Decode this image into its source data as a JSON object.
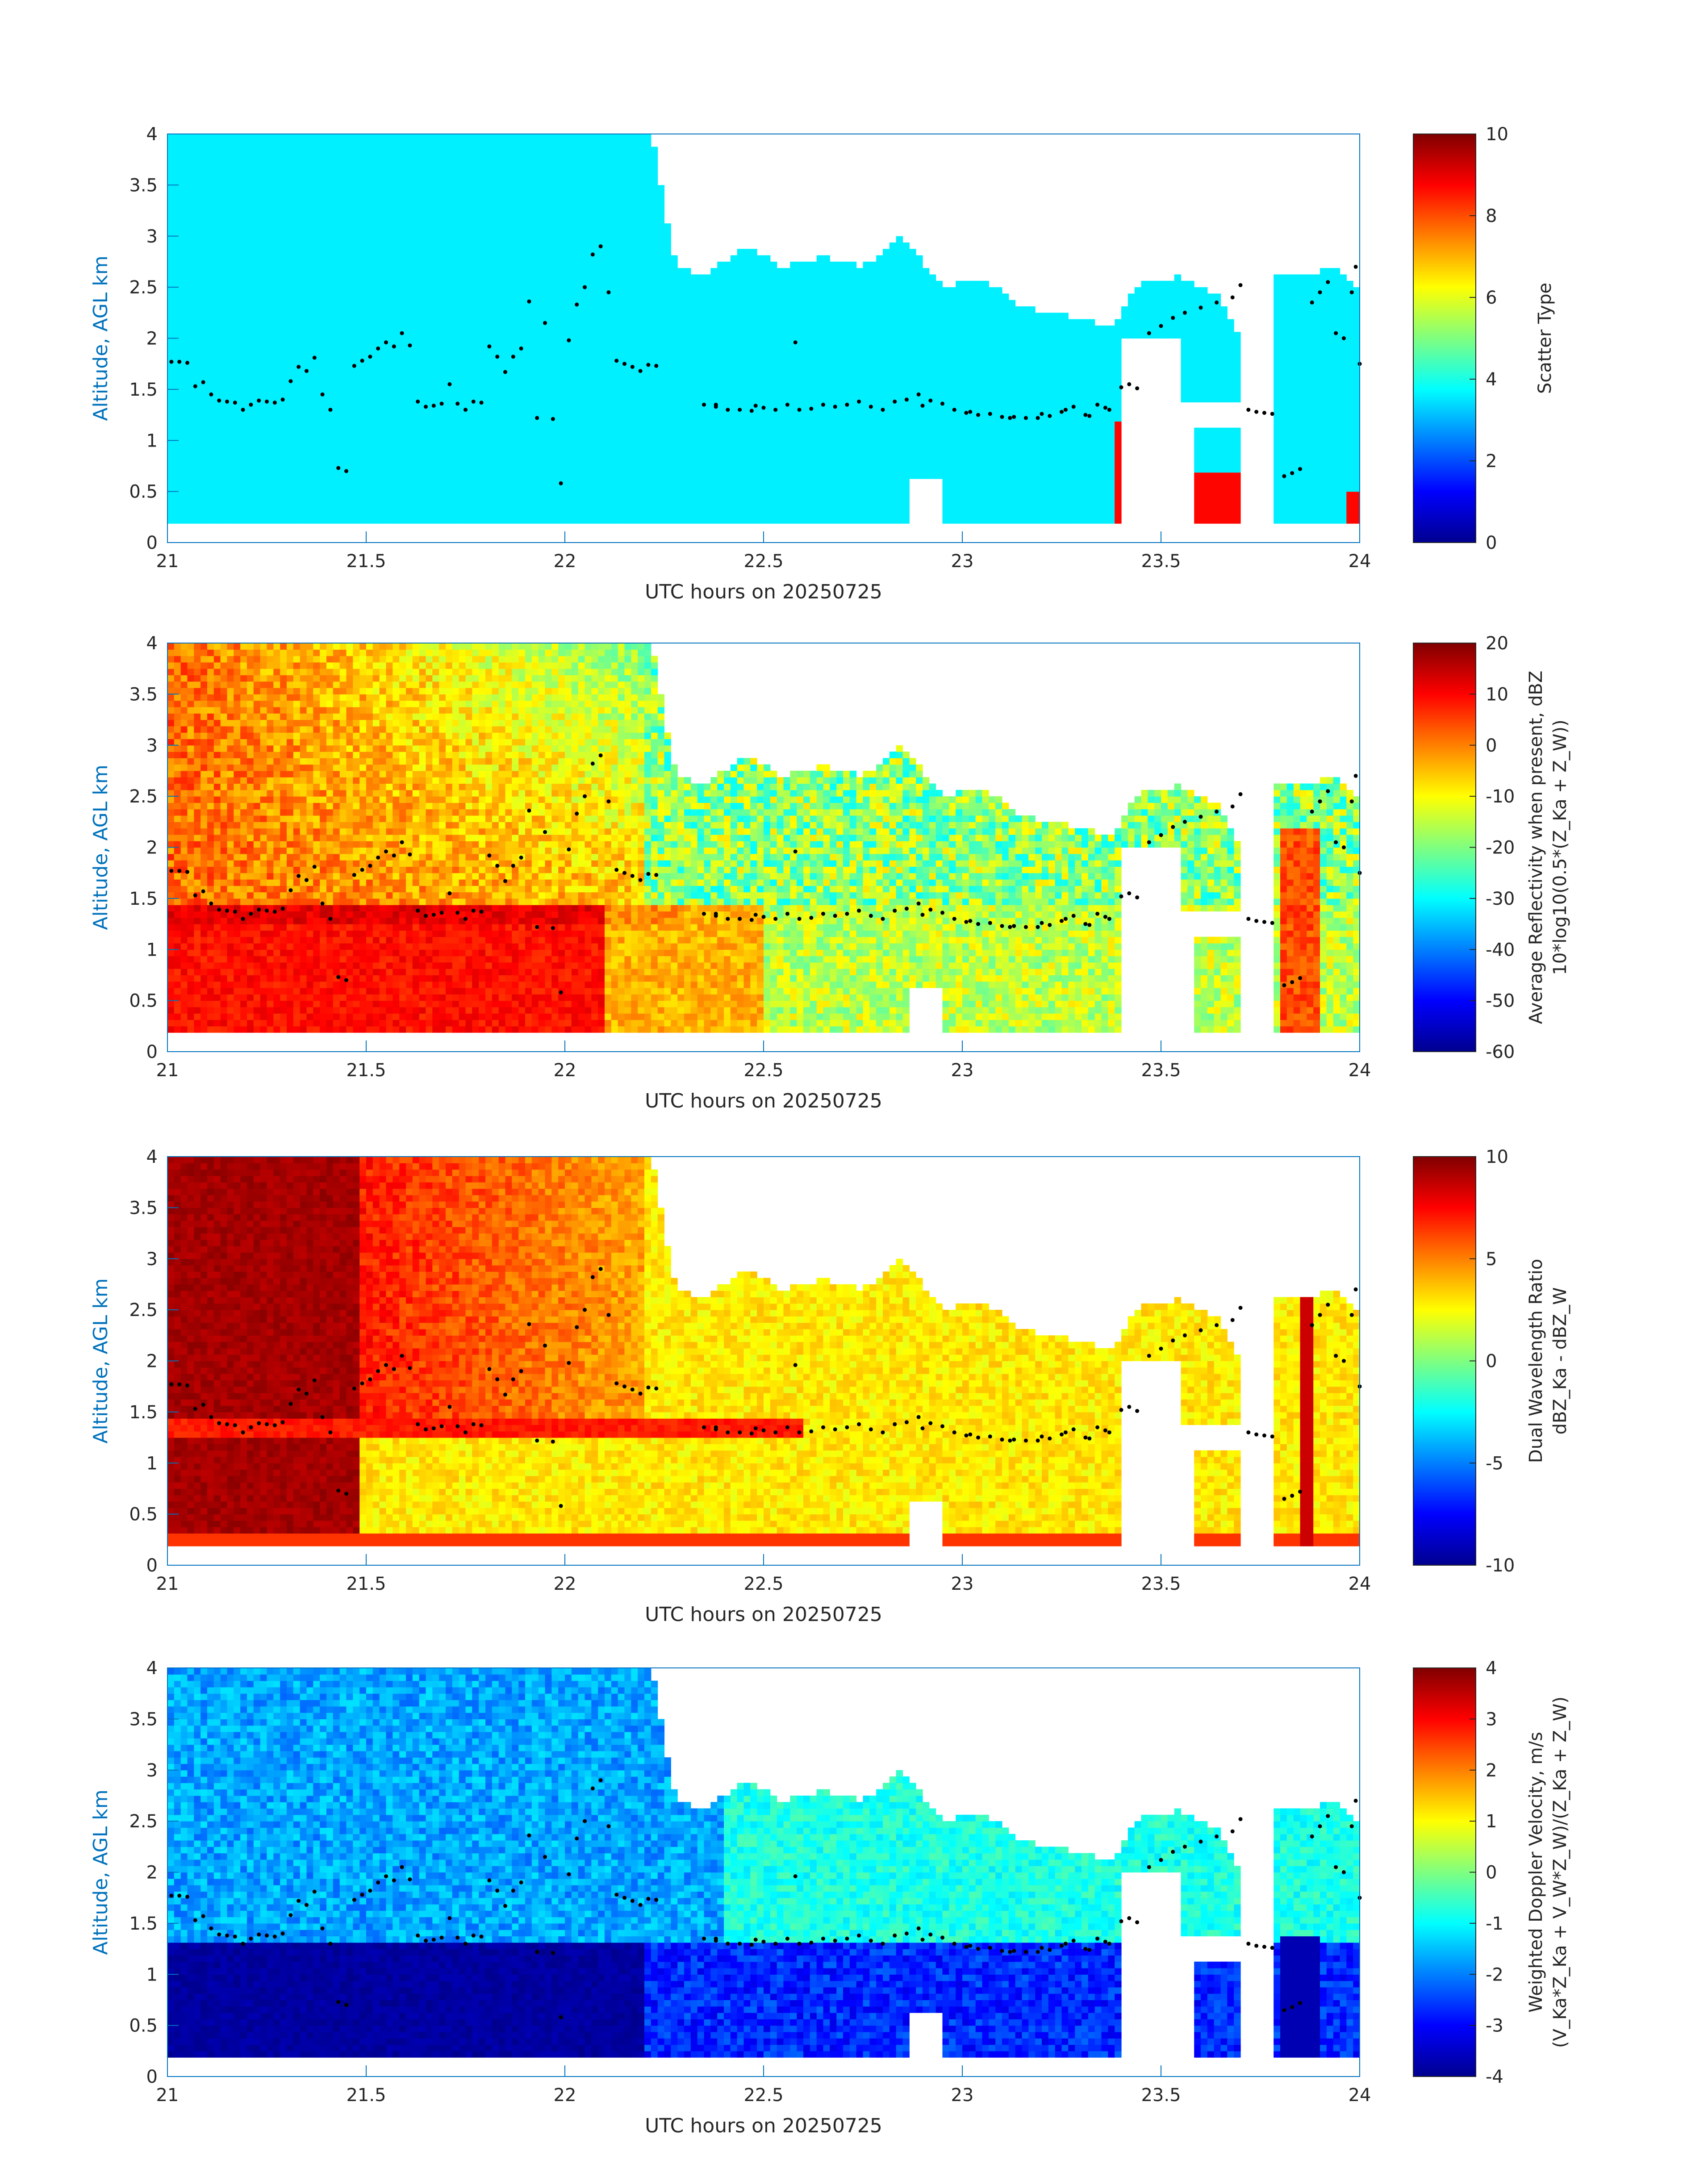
{
  "figure": {
    "background": "#ffffff",
    "axis_color": "#0072bd",
    "text_color": "#262626"
  },
  "chart_data": [
    {
      "type": "heatmap",
      "title": "",
      "xlabel": "UTC hours on 20250725",
      "ylabel": "Altitude, AGL km",
      "xlim": [
        21,
        24
      ],
      "ylim": [
        0,
        4
      ],
      "xticks": [
        "21",
        "21.5",
        "22",
        "22.5",
        "23",
        "23.5",
        "24"
      ],
      "yticks": [
        "0",
        "0.5",
        "1",
        "1.5",
        "2",
        "2.5",
        "3",
        "3.5",
        "4"
      ],
      "colormap": "jet",
      "colorbar": {
        "label": "Scatter Type",
        "clim": [
          0,
          10
        ],
        "ticks": [
          "0",
          "2",
          "4",
          "6",
          "8",
          "10"
        ]
      },
      "field": "scatter_type"
    },
    {
      "type": "heatmap",
      "title": "",
      "xlabel": "UTC hours on 20250725",
      "ylabel": "Altitude, AGL km",
      "xlim": [
        21,
        24
      ],
      "ylim": [
        0,
        4
      ],
      "xticks": [
        "21",
        "21.5",
        "22",
        "22.5",
        "23",
        "23.5",
        "24"
      ],
      "yticks": [
        "0",
        "0.5",
        "1",
        "1.5",
        "2",
        "2.5",
        "3",
        "3.5",
        "4"
      ],
      "colormap": "jet",
      "colorbar": {
        "label": "Average Reflectivity when present, dBZ",
        "label2": "10*log10(0.5*(Z_Ka + Z_W))",
        "clim": [
          -60,
          20
        ],
        "ticks": [
          "-60",
          "-50",
          "-40",
          "-30",
          "-20",
          "-10",
          "0",
          "10",
          "20"
        ]
      },
      "field": "reflectivity"
    },
    {
      "type": "heatmap",
      "title": "",
      "xlabel": "UTC hours on 20250725",
      "ylabel": "Altitude, AGL km",
      "xlim": [
        21,
        24
      ],
      "ylim": [
        0,
        4
      ],
      "xticks": [
        "21",
        "21.5",
        "22",
        "22.5",
        "23",
        "23.5",
        "24"
      ],
      "yticks": [
        "0",
        "0.5",
        "1",
        "1.5",
        "2",
        "2.5",
        "3",
        "3.5",
        "4"
      ],
      "colormap": "jet",
      "colorbar": {
        "label": "Dual Wavelength Ratio",
        "label2": "dBZ_Ka - dBZ_W",
        "clim": [
          -10,
          10
        ],
        "ticks": [
          "-10",
          "-5",
          "0",
          "5",
          "10"
        ]
      },
      "field": "dwr"
    },
    {
      "type": "heatmap",
      "title": "",
      "xlabel": "UTC hours on 20250725",
      "ylabel": "Altitude, AGL km",
      "xlim": [
        21,
        24
      ],
      "ylim": [
        0,
        4
      ],
      "xticks": [
        "21",
        "21.5",
        "22",
        "22.5",
        "23",
        "23.5",
        "24"
      ],
      "yticks": [
        "0",
        "0.5",
        "1",
        "1.5",
        "2",
        "2.5",
        "3",
        "3.5",
        "4"
      ],
      "colormap": "jet",
      "colorbar": {
        "label": "Weighted Doppler Velocity, m/s",
        "label2": "(V_Ka*Z_Ka + V_W*Z_W)/(Z_Ka + Z_W)",
        "clim": [
          -4,
          4
        ],
        "ticks": [
          "-4",
          "-3",
          "-2",
          "-1",
          "0",
          "1",
          "2",
          "3",
          "4"
        ]
      },
      "field": "doppler"
    }
  ],
  "cloud_envelope": {
    "top_km": [
      [
        21.0,
        4.0
      ],
      [
        22.22,
        4.0
      ],
      [
        22.25,
        3.3
      ],
      [
        22.28,
        2.7
      ],
      [
        22.35,
        2.6
      ],
      [
        22.45,
        2.9
      ],
      [
        22.55,
        2.7
      ],
      [
        22.65,
        2.8
      ],
      [
        22.75,
        2.7
      ],
      [
        22.85,
        3.0
      ],
      [
        22.95,
        2.5
      ],
      [
        23.05,
        2.6
      ],
      [
        23.15,
        2.3
      ],
      [
        23.3,
        2.2
      ],
      [
        23.38,
        2.1
      ],
      [
        23.4,
        2.3
      ],
      [
        23.45,
        2.55
      ],
      [
        23.55,
        2.6
      ],
      [
        23.65,
        2.4
      ],
      [
        23.7,
        2.0
      ]
    ],
    "top2_km": [
      [
        23.8,
        2.6
      ],
      [
        23.87,
        2.6
      ],
      [
        23.93,
        2.7
      ],
      [
        24.0,
        2.5
      ]
    ],
    "base_km": 0.18
  },
  "melting_layer_km": 1.32,
  "overlay_points": [
    [
      21.01,
      1.77
    ],
    [
      21.03,
      1.77
    ],
    [
      21.05,
      1.76
    ],
    [
      21.07,
      1.53
    ],
    [
      21.09,
      1.57
    ],
    [
      21.11,
      1.45
    ],
    [
      21.13,
      1.39
    ],
    [
      21.15,
      1.38
    ],
    [
      21.17,
      1.37
    ],
    [
      21.19,
      1.3
    ],
    [
      21.21,
      1.35
    ],
    [
      21.23,
      1.39
    ],
    [
      21.25,
      1.38
    ],
    [
      21.27,
      1.37
    ],
    [
      21.29,
      1.4
    ],
    [
      21.31,
      1.58
    ],
    [
      21.33,
      1.72
    ],
    [
      21.35,
      1.68
    ],
    [
      21.37,
      1.81
    ],
    [
      21.39,
      1.45
    ],
    [
      21.41,
      1.3
    ],
    [
      21.43,
      0.73
    ],
    [
      21.45,
      0.7
    ],
    [
      21.47,
      1.73
    ],
    [
      21.49,
      1.78
    ],
    [
      21.51,
      1.82
    ],
    [
      21.53,
      1.9
    ],
    [
      21.55,
      1.96
    ],
    [
      21.57,
      1.92
    ],
    [
      21.59,
      2.05
    ],
    [
      21.61,
      1.93
    ],
    [
      21.63,
      1.38
    ],
    [
      21.65,
      1.33
    ],
    [
      21.67,
      1.34
    ],
    [
      21.69,
      1.36
    ],
    [
      21.71,
      1.55
    ],
    [
      21.73,
      1.36
    ],
    [
      21.75,
      1.3
    ],
    [
      21.77,
      1.38
    ],
    [
      21.79,
      1.37
    ],
    [
      21.81,
      1.92
    ],
    [
      21.83,
      1.82
    ],
    [
      21.85,
      1.67
    ],
    [
      21.87,
      1.82
    ],
    [
      21.89,
      1.9
    ],
    [
      21.91,
      2.36
    ],
    [
      21.93,
      1.22
    ],
    [
      21.95,
      2.15
    ],
    [
      21.97,
      1.21
    ],
    [
      21.99,
      0.58
    ],
    [
      22.01,
      1.98
    ],
    [
      22.03,
      2.33
    ],
    [
      22.05,
      2.5
    ],
    [
      22.07,
      2.82
    ],
    [
      22.09,
      2.9
    ],
    [
      22.11,
      2.45
    ],
    [
      22.13,
      1.78
    ],
    [
      22.15,
      1.75
    ],
    [
      22.17,
      1.72
    ],
    [
      22.19,
      1.68
    ],
    [
      22.21,
      1.74
    ],
    [
      22.23,
      1.73
    ],
    [
      22.35,
      1.35
    ],
    [
      22.38,
      1.33
    ],
    [
      22.41,
      1.3
    ],
    [
      22.44,
      1.3
    ],
    [
      22.47,
      1.29
    ],
    [
      22.5,
      1.32
    ],
    [
      22.53,
      1.3
    ],
    [
      22.56,
      1.35
    ],
    [
      22.59,
      1.3
    ],
    [
      22.62,
      1.31
    ],
    [
      22.65,
      1.35
    ],
    [
      22.68,
      1.33
    ],
    [
      22.71,
      1.35
    ],
    [
      22.74,
      1.38
    ],
    [
      22.77,
      1.33
    ],
    [
      22.8,
      1.3
    ],
    [
      22.83,
      1.38
    ],
    [
      22.86,
      1.4
    ],
    [
      22.89,
      1.45
    ],
    [
      22.92,
      1.39
    ],
    [
      22.95,
      1.36
    ],
    [
      22.98,
      1.3
    ],
    [
      23.01,
      1.27
    ],
    [
      23.04,
      1.25
    ],
    [
      23.07,
      1.26
    ],
    [
      23.1,
      1.23
    ],
    [
      23.13,
      1.23
    ],
    [
      23.16,
      1.22
    ],
    [
      23.19,
      1.22
    ],
    [
      23.22,
      1.24
    ],
    [
      23.25,
      1.28
    ],
    [
      23.28,
      1.33
    ],
    [
      23.31,
      1.25
    ],
    [
      23.34,
      1.35
    ],
    [
      23.37,
      1.3
    ],
    [
      22.38,
      1.35
    ],
    [
      22.48,
      1.34
    ],
    [
      22.58,
      1.96
    ],
    [
      22.9,
      1.34
    ],
    [
      23.02,
      1.28
    ],
    [
      23.12,
      1.22
    ],
    [
      23.2,
      1.26
    ],
    [
      23.26,
      1.3
    ],
    [
      23.32,
      1.24
    ],
    [
      23.36,
      1.32
    ],
    [
      23.4,
      1.52
    ],
    [
      23.42,
      1.55
    ],
    [
      23.44,
      1.51
    ],
    [
      23.47,
      2.05
    ],
    [
      23.5,
      2.12
    ],
    [
      23.53,
      2.2
    ],
    [
      23.56,
      2.25
    ],
    [
      23.6,
      2.3
    ],
    [
      23.64,
      2.35
    ],
    [
      23.68,
      2.4
    ],
    [
      23.7,
      2.52
    ],
    [
      23.72,
      1.3
    ],
    [
      23.74,
      1.28
    ],
    [
      23.76,
      1.27
    ],
    [
      23.78,
      1.26
    ],
    [
      23.81,
      0.65
    ],
    [
      23.83,
      0.68
    ],
    [
      23.85,
      0.72
    ],
    [
      23.88,
      2.35
    ],
    [
      23.9,
      2.45
    ],
    [
      23.92,
      2.55
    ],
    [
      23.94,
      2.05
    ],
    [
      23.96,
      2.0
    ],
    [
      23.98,
      2.45
    ],
    [
      23.99,
      2.7
    ],
    [
      24.0,
      1.75
    ]
  ]
}
